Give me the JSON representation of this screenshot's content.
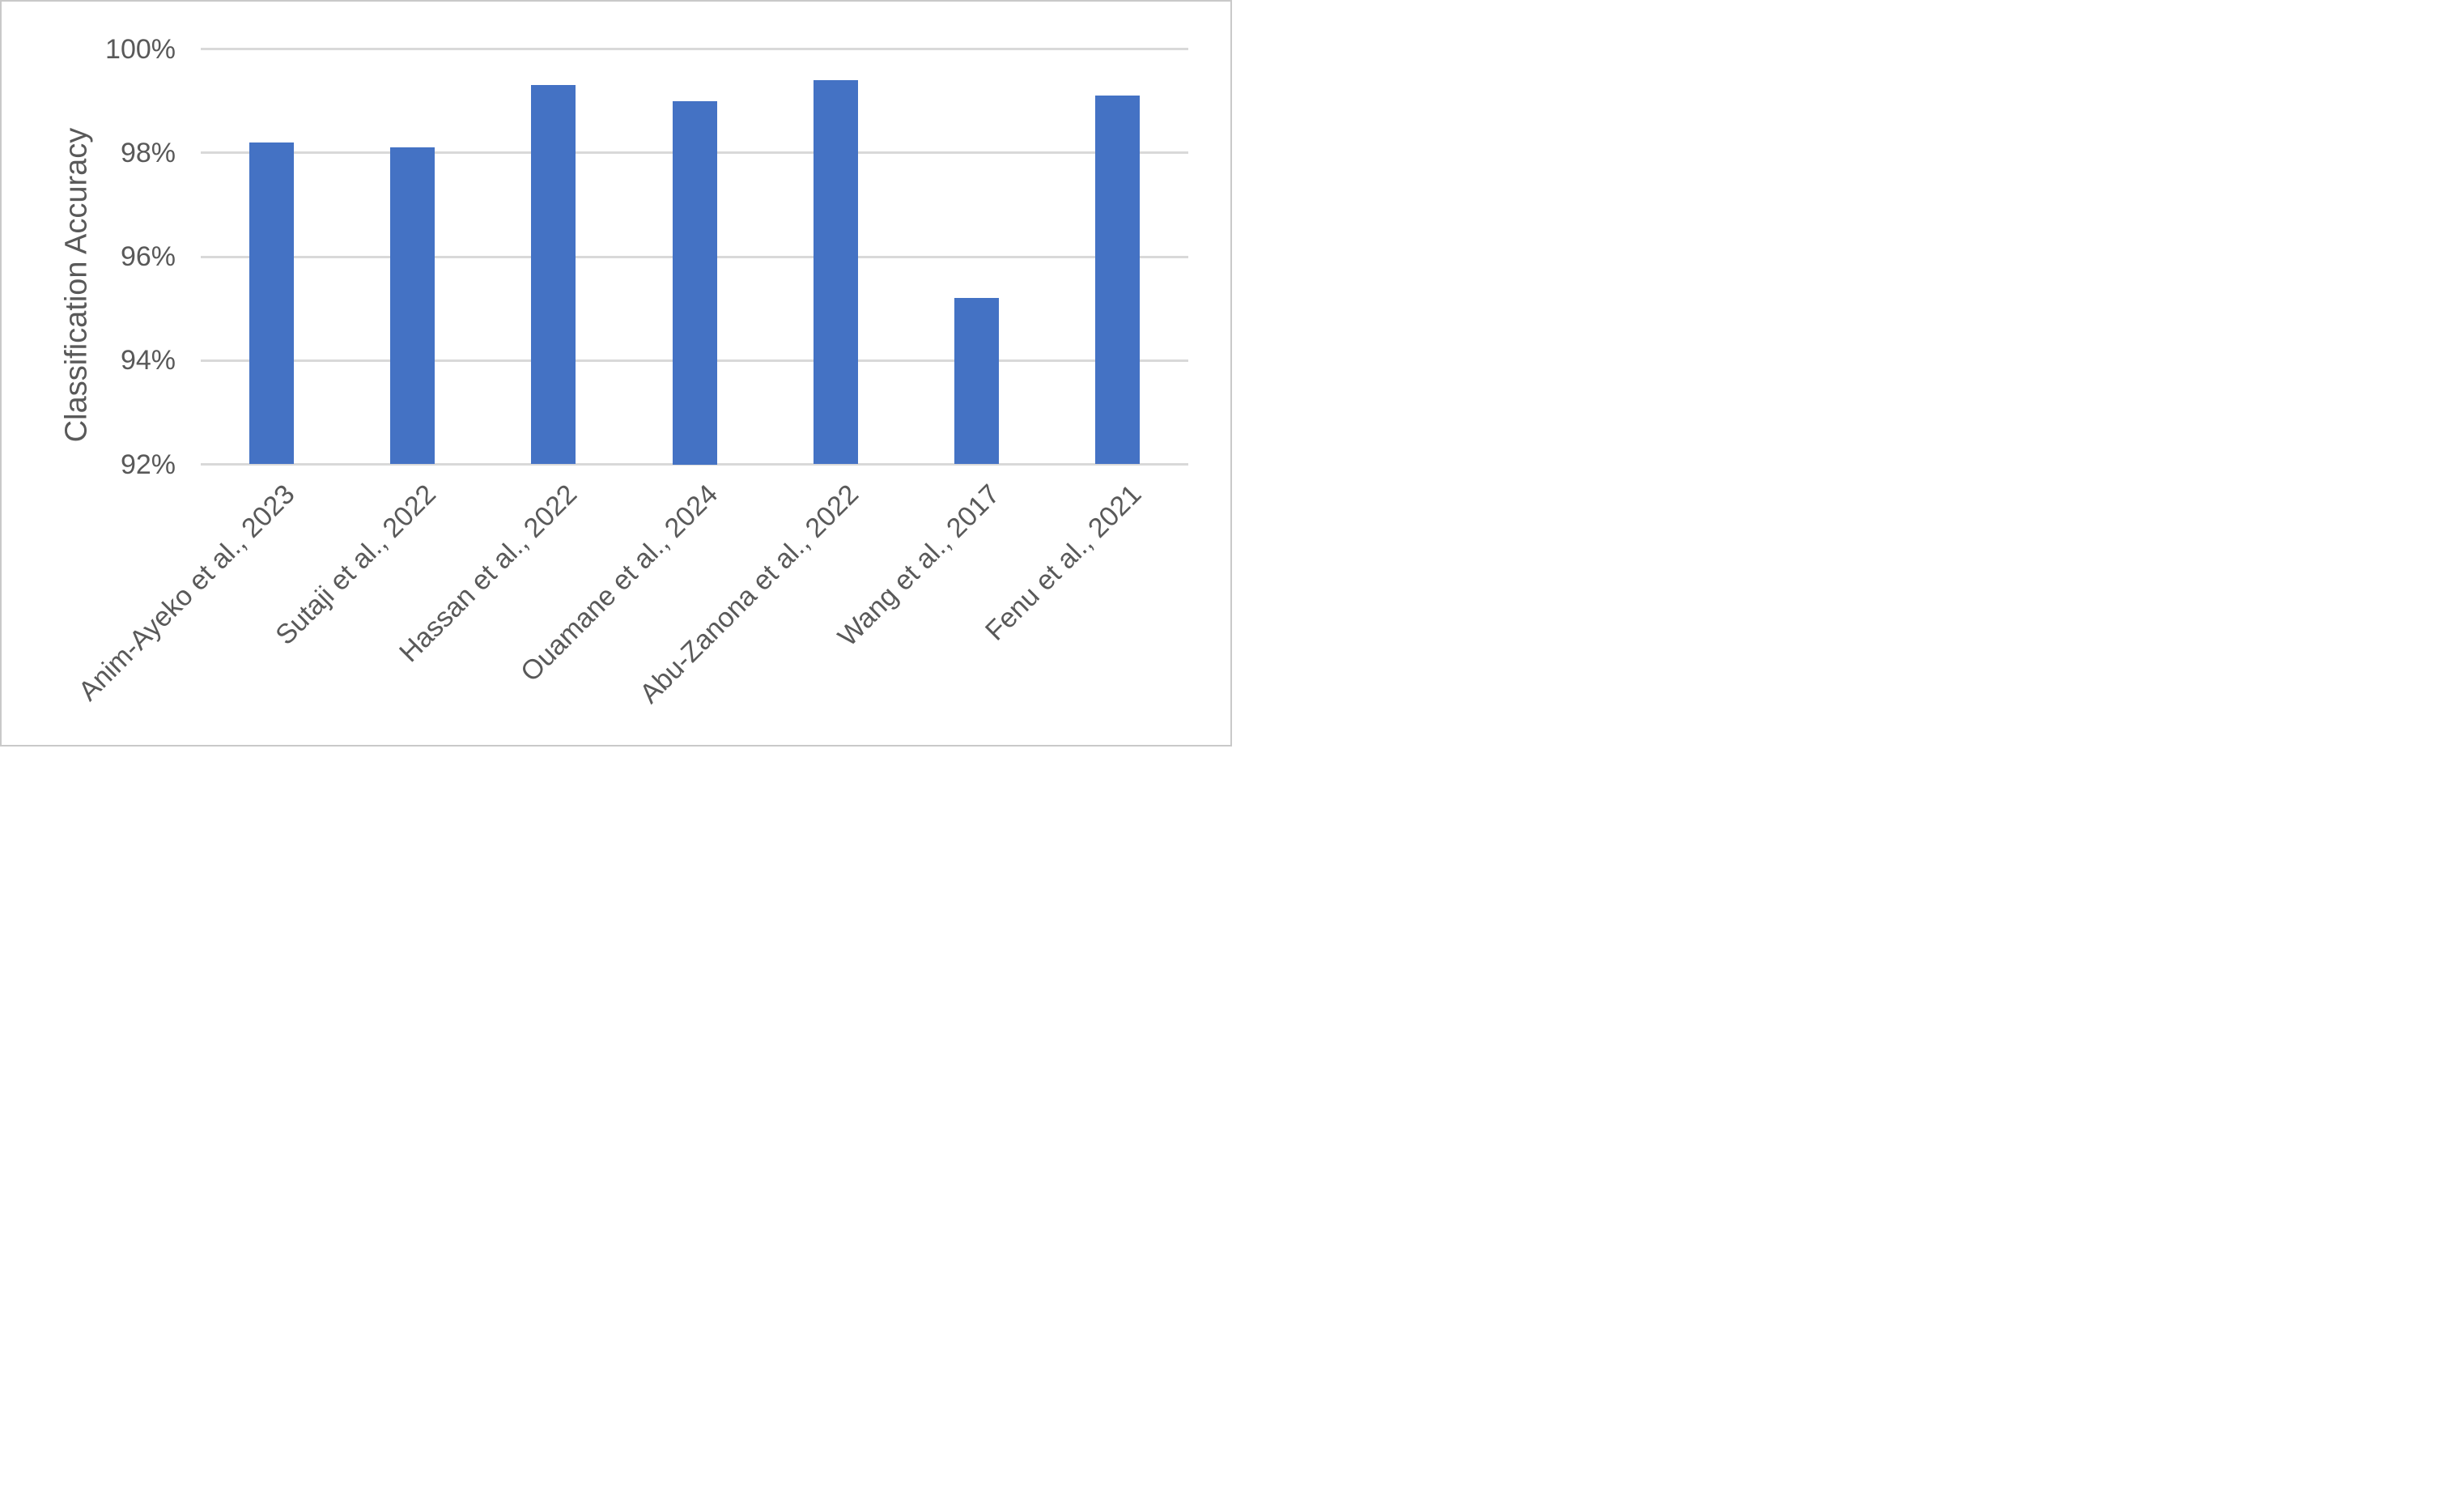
{
  "chart_data": {
    "type": "bar",
    "title": "",
    "ylabel": "Classification Accuracy",
    "xlabel": "",
    "categories": [
      "Anim-Ayeko et al., 2023",
      "Sutaji et al., 2022",
      "Hassan et al., 2022",
      "Ouamane et al., 2024",
      "Abu-Zanona et al., 2022",
      "Wang et al., 2017",
      "Fenu et al., 2021"
    ],
    "values": [
      98.2,
      98.1,
      99.3,
      99.0,
      99.4,
      95.2,
      99.1
    ],
    "unit": "%",
    "ylim": [
      92,
      100
    ],
    "ytick_step": 2,
    "yticks": [
      "100%",
      "98%",
      "96%",
      "94%",
      "92%"
    ],
    "ytick_values": [
      100,
      98,
      96,
      94,
      92
    ],
    "grid": true,
    "legend": false,
    "bar_color": "#4472C4",
    "gridline_color": "#D9D9D9",
    "text_color": "#595959",
    "frame_border_color": "#C9C9C9",
    "x_label_rotation_deg": 45
  }
}
